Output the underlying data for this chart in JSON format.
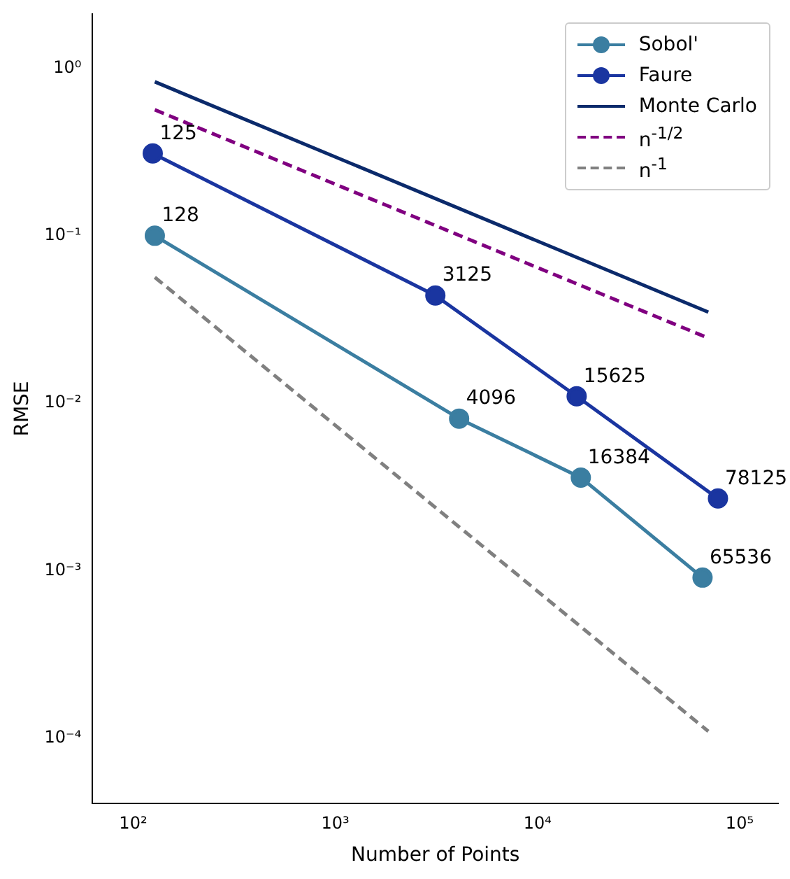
{
  "chart_data": {
    "type": "line",
    "xlabel": "Number of Points",
    "ylabel": "RMSE",
    "log": "xy",
    "grid": false,
    "legend": "top right",
    "xlim": [
      63,
      155000
    ],
    "ylim": [
      4.1e-05,
      2.1
    ],
    "xticks": [
      {
        "value": 100,
        "label": "10²"
      },
      {
        "value": 1000,
        "label": "10³"
      },
      {
        "value": 10000,
        "label": "10⁴"
      },
      {
        "value": 100000,
        "label": "10⁵"
      }
    ],
    "yticks": [
      {
        "value": 0.0001,
        "label": "10⁻⁴"
      },
      {
        "value": 0.001,
        "label": "10⁻³"
      },
      {
        "value": 0.01,
        "label": "10⁻²"
      },
      {
        "value": 0.1,
        "label": "10⁻¹"
      },
      {
        "value": 1,
        "label": "10⁰"
      }
    ],
    "series": [
      {
        "name": "Sobol'",
        "color": "#3b7ea1",
        "marker": "circle",
        "line_style": "solid",
        "x": [
          128,
          4096,
          16384,
          65536
        ],
        "values": [
          0.1,
          0.0081,
          0.0036,
          0.00091
        ]
      },
      {
        "name": "Faure",
        "color": "#1a35a0",
        "marker": "circle",
        "line_style": "solid",
        "x": [
          125,
          3125,
          15625,
          78125
        ],
        "values": [
          0.31,
          0.044,
          0.011,
          0.0027
        ]
      },
      {
        "name": "Monte Carlo",
        "color": "#0b2a6b",
        "marker": "none",
        "line_style": "solid",
        "x": [
          128,
          70000
        ],
        "values": [
          0.83,
          0.035
        ]
      },
      {
        "name": "n$^{-1/2}$",
        "color": "#800080",
        "marker": "none",
        "line_style": "dashed",
        "x": [
          128,
          70000
        ],
        "values": [
          0.565,
          0.0245
        ]
      },
      {
        "name": "n$^{-1}$",
        "color": "#808080",
        "marker": "none",
        "line_style": "dashed",
        "x": [
          128,
          70000
        ],
        "values": [
          0.0565,
          0.00011
        ]
      }
    ],
    "annotations": [
      {
        "text": "128",
        "x": 128,
        "y": 0.1
      },
      {
        "text": "4096",
        "x": 4096,
        "y": 0.0081
      },
      {
        "text": "16384",
        "x": 16384,
        "y": 0.0036
      },
      {
        "text": "65536",
        "x": 65536,
        "y": 0.00091
      },
      {
        "text": "125",
        "x": 125,
        "y": 0.31
      },
      {
        "text": "3125",
        "x": 3125,
        "y": 0.044
      },
      {
        "text": "15625",
        "x": 15625,
        "y": 0.011
      },
      {
        "text": "78125",
        "x": 78125,
        "y": 0.0027
      }
    ]
  }
}
